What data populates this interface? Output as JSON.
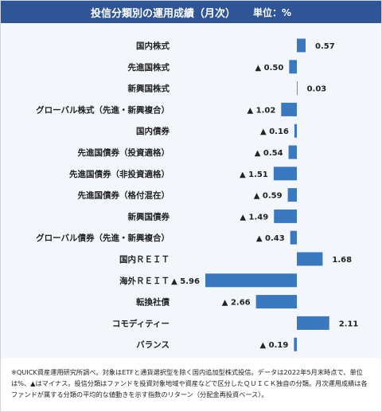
{
  "header": {
    "title": "投信分類別の運用成績（月次）",
    "unit": "単位：%"
  },
  "chart_data": {
    "type": "bar",
    "orientation": "horizontal",
    "title": "投信分類別の運用成績（月次）",
    "unit": "%",
    "categories": [
      "国内株式",
      "先進国株式",
      "新興国株式",
      "グローバル株式（先進・新興複合）",
      "国内債券",
      "先進国債券（投資適格）",
      "先進国債券（非投資適格）",
      "先進国債券（格付混在）",
      "新興国債券",
      "グローバル債券（先進・新興複合）",
      "国内ＲＥＩＴ",
      "海外ＲＥＩＴ",
      "転換社債",
      "コモディティー",
      "バランス"
    ],
    "values": [
      0.57,
      -0.5,
      0.03,
      -1.02,
      -0.16,
      -0.54,
      -1.51,
      -0.59,
      -1.49,
      -0.43,
      1.68,
      -5.96,
      -2.66,
      2.11,
      -0.19
    ],
    "value_labels": [
      "0.57",
      "▲ 0.50",
      "0.03",
      "▲ 1.02",
      "▲ 0.16",
      "▲ 0.54",
      "▲ 1.51",
      "▲ 0.59",
      "▲ 1.49",
      "▲ 0.43",
      "1.68",
      "▲ 5.96",
      "▲ 2.66",
      "2.11",
      "▲ 0.19"
    ],
    "bar_color": "#3a78c0"
  },
  "footnote": "※QUICK資産運用研究所調べ。対象はETFと通貨選択型を除く国内追加型株式投信。データは2022年5月末時点で、単位は%、▲はマイナス。投信分類はファンドを投資対象地域や資産などで区分したＱＵＩＣＫ独自の分類。月次運用成績は各ファンドが属する分類の平均的な値動きを示す指数のリターン（分配金再投資ベース）。"
}
